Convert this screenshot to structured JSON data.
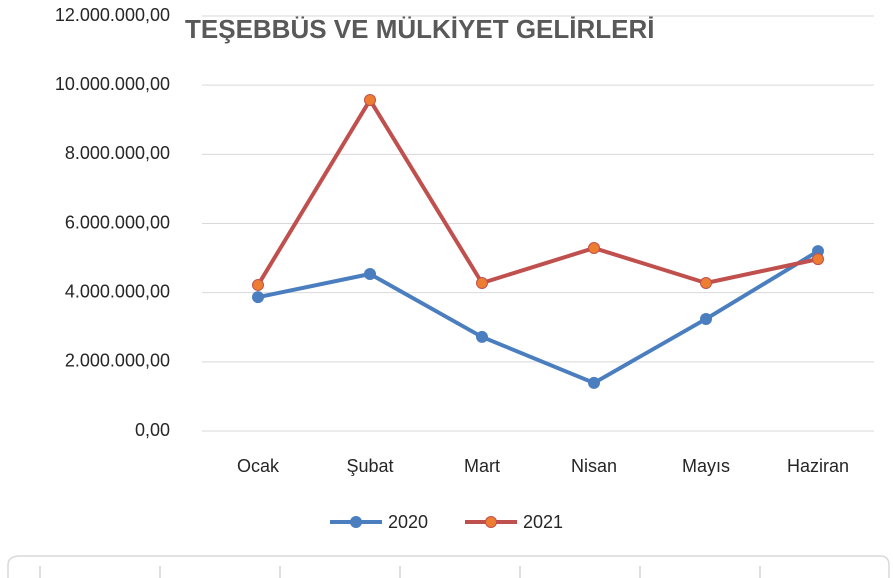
{
  "chart_data": {
    "type": "line",
    "title": "TEŞEBBÜS VE MÜLKİYET GELİRLERİ",
    "categories": [
      "Ocak",
      "Şubat",
      "Mart",
      "Nisan",
      "Mayıs",
      "Haziran"
    ],
    "series": [
      {
        "name": "2020",
        "color": "#4a7ebf",
        "marker_color": "#4a7ebf",
        "values": [
          3870000,
          4540000,
          2720000,
          1390000,
          3240000,
          5200000
        ]
      },
      {
        "name": "2021",
        "color": "#c0504d",
        "marker_color": "#ed7d31",
        "values": [
          4220000,
          9570000,
          4280000,
          5290000,
          4280000,
          4970000
        ]
      }
    ],
    "ylim": [
      0,
      12000000
    ],
    "yticks": [
      {
        "value": 0,
        "label": "0,00"
      },
      {
        "value": 2000000,
        "label": "2.000.000,00"
      },
      {
        "value": 4000000,
        "label": "4.000.000,00"
      },
      {
        "value": 6000000,
        "label": "6.000.000,00"
      },
      {
        "value": 8000000,
        "label": "8.000.000,00"
      },
      {
        "value": 10000000,
        "label": "10.000.000,00"
      },
      {
        "value": 12000000,
        "label": "12.000.000,00"
      }
    ],
    "grid": true,
    "legend": "bottom"
  }
}
